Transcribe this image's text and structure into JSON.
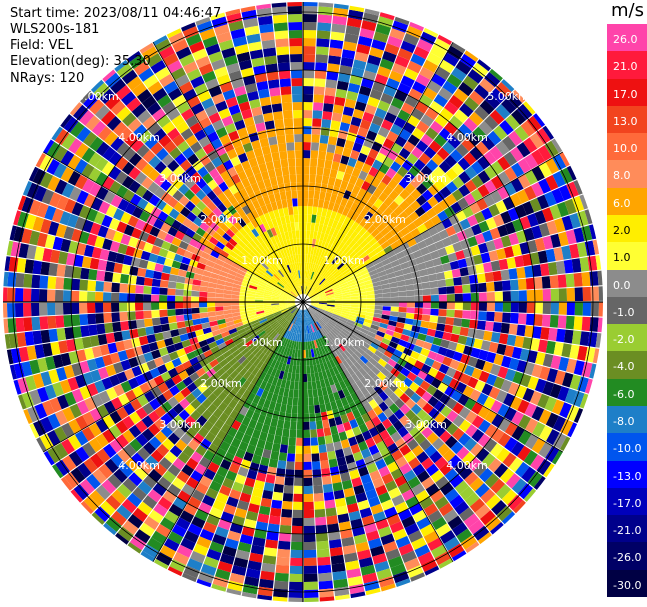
{
  "header": {
    "start_time": "Start time: 2023/08/11 04:46:47",
    "instrument": "WLS200s-181",
    "field": "Field: VEL",
    "elevation": "Elevation(deg): 35.30",
    "nrays": "NRays: 120"
  },
  "ppi": {
    "range_rings": [
      "1.00km",
      "2.00km",
      "3.00km",
      "4.00km",
      "5.00km"
    ],
    "range_labels": [
      {
        "ring": 1,
        "text": "1.00km"
      },
      {
        "ring": 1,
        "text": "1.00km"
      },
      {
        "ring": 1,
        "text": "1.00km"
      },
      {
        "ring": 1,
        "text": "1.00km"
      },
      {
        "ring": 2,
        "text": "2.00km"
      },
      {
        "ring": 2,
        "text": "2.00km"
      },
      {
        "ring": 2,
        "text": "2.00km"
      },
      {
        "ring": 2,
        "text": "2.00km"
      },
      {
        "ring": 3,
        "text": "3.00km"
      },
      {
        "ring": 3,
        "text": "3.00km"
      },
      {
        "ring": 3,
        "text": "3.00km"
      },
      {
        "ring": 3,
        "text": "3.00km"
      },
      {
        "ring": 4,
        "text": "4.00km"
      },
      {
        "ring": 4,
        "text": "4.00km"
      },
      {
        "ring": 4,
        "text": "4.00km"
      },
      {
        "ring": 4,
        "text": "4.00km"
      },
      {
        "ring": 5,
        "text": "5.00km"
      },
      {
        "ring": 5,
        "text": "5.00km"
      }
    ],
    "nrays": 120
  },
  "colorbar": {
    "unit": "m/s",
    "levels": [
      {
        "label": "26.0",
        "color": "#ff44aa"
      },
      {
        "label": "21.0",
        "color": "#ff1a3c"
      },
      {
        "label": "17.0",
        "color": "#ee1111"
      },
      {
        "label": "13.0",
        "color": "#f2441e"
      },
      {
        "label": "10.0",
        "color": "#ff6a3a"
      },
      {
        "label": "8.0",
        "color": "#ff8c5a"
      },
      {
        "label": "6.0",
        "color": "#ffa500"
      },
      {
        "label": "2.0",
        "color": "#ffee00"
      },
      {
        "label": "1.0",
        "color": "#ffff33"
      },
      {
        "label": "0.0",
        "color": "#8c8c8c"
      },
      {
        "label": "-1.0",
        "color": "#666666"
      },
      {
        "label": "-2.0",
        "color": "#9acd32"
      },
      {
        "label": "-4.0",
        "color": "#6b8e23"
      },
      {
        "label": "-6.0",
        "color": "#228b22"
      },
      {
        "label": "-8.0",
        "color": "#1e7fc8"
      },
      {
        "label": "-10.0",
        "color": "#0055ee"
      },
      {
        "label": "-13.0",
        "color": "#0000ff"
      },
      {
        "label": "-17.0",
        "color": "#0000bb"
      },
      {
        "label": "-21.0",
        "color": "#00008b"
      },
      {
        "label": "-26.0",
        "color": "#000066"
      },
      {
        "label": "-30.0",
        "color": "#000044"
      }
    ]
  }
}
